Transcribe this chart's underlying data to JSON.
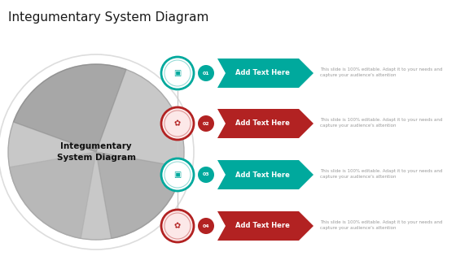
{
  "title": "Integumentary System Diagram",
  "title_fontsize": 11,
  "title_color": "#1a1a1a",
  "bg_color": "#ffffff",
  "teal": "#00A99D",
  "red": "#B22222",
  "red_light": "#cd3333",
  "gray_text": "#999999",
  "center_label": "Integumentary\nSystem Diagram",
  "center_label_color": "#222222",
  "items": [
    {
      "num": "01",
      "label": "Add Text Here",
      "desc": "This slide is 100% editable. Adapt it to your needs and\ncapture your audience's attention",
      "color": "teal"
    },
    {
      "num": "02",
      "label": "Add Text Here",
      "desc": "This slide is 100% editable. Adapt it to your needs and\ncapture your audience's attention",
      "color": "red"
    },
    {
      "num": "03",
      "label": "Add Text Here",
      "desc": "This slide is 100% editable. Adapt it to your needs and\ncapture your audience's attention",
      "color": "teal"
    },
    {
      "num": "04",
      "label": "Add Text Here",
      "desc": "This slide is 100% editable. Adapt it to your needs and\ncapture your audience's attention",
      "color": "red"
    }
  ],
  "fig_w": 5.6,
  "fig_h": 3.15,
  "dpi": 100
}
